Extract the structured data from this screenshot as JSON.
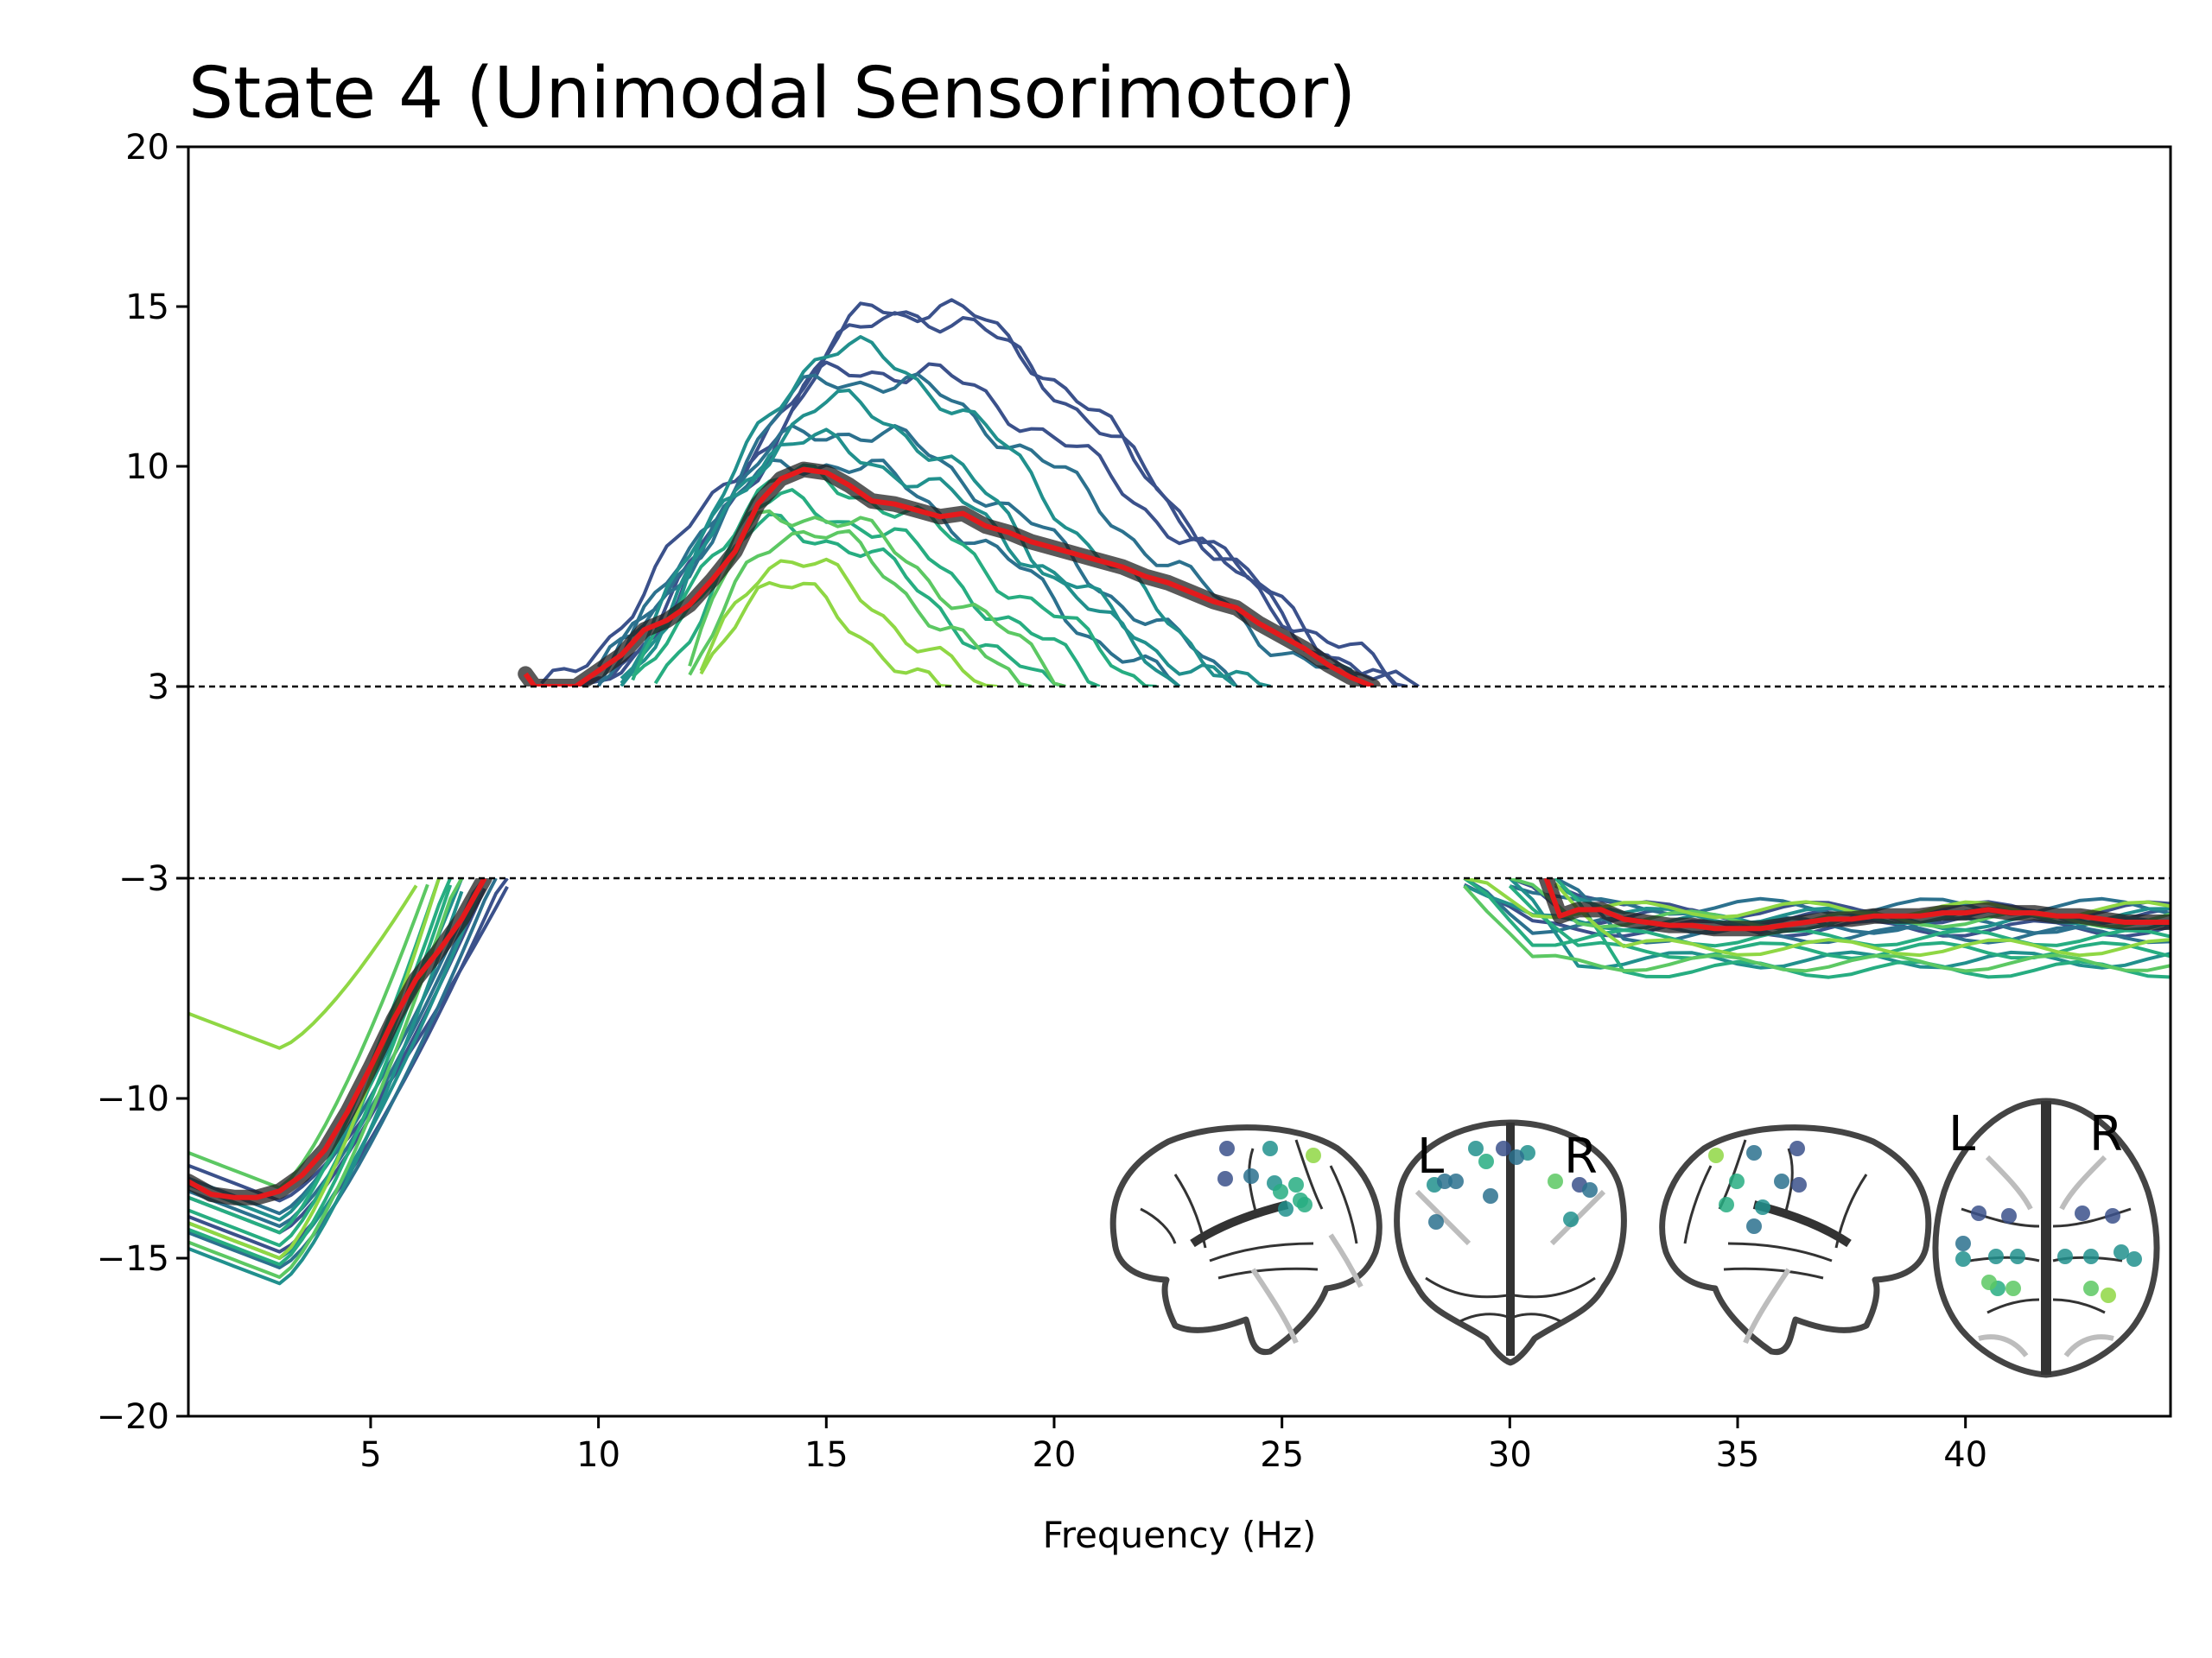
{
  "chart_data": {
    "type": "line",
    "title": "State 4 (Unimodal Sensorimotor)",
    "xlabel": "Frequency (Hz)",
    "ylabel": "",
    "xlim": [
      1,
      44.5
    ],
    "x_ticks": [
      5,
      10,
      15,
      20,
      25,
      30,
      35,
      40
    ],
    "y_ticks": [
      20,
      15,
      10,
      3,
      -3,
      -10,
      -15,
      -20
    ],
    "y_tick_labels": [
      "20",
      "15",
      "10",
      "3",
      "−3",
      "−10",
      "−15",
      "−20"
    ],
    "threshold_lines": [
      3,
      -3
    ],
    "grid": false,
    "legend": "none",
    "colors": {
      "mean_line": "#e41a1c",
      "mean_band": "#222222",
      "threshold": "#000000",
      "viridis": [
        "#3b518b",
        "#2c718e",
        "#21908d",
        "#27ad81",
        "#5cc863",
        "#8fd744"
      ]
    },
    "mean_series": {
      "name": "",
      "low_band": {
        "x": [
          1,
          1.5,
          2,
          2.5,
          3,
          3.5,
          4,
          4.5,
          5,
          5.5,
          6,
          6.5,
          7,
          7.5
        ],
        "y": [
          -12.6,
          -13,
          -13.1,
          -13.1,
          -12.9,
          -12.4,
          -11.6,
          -10.4,
          -9.0,
          -7.5,
          -6.2,
          -5.3,
          -4.3,
          -3
        ]
      },
      "peak": {
        "x": [
          8.4,
          8.6,
          9.5,
          10,
          10.5,
          11,
          11.5,
          12,
          12.5,
          13,
          13.5,
          14,
          14.5,
          15,
          15.5,
          16,
          16.5,
          17,
          17.5,
          18,
          18.5,
          19,
          19.5,
          20,
          20.5,
          21,
          21.5,
          22,
          22.5,
          23,
          23.5,
          24,
          24.5,
          25,
          25.5,
          26,
          26.5,
          27
        ],
        "y": [
          3.4,
          3,
          3,
          3.5,
          4.0,
          4.8,
          5.1,
          5.6,
          6.4,
          7.3,
          8.8,
          9.6,
          9.9,
          9.8,
          9.4,
          8.9,
          8.8,
          8.6,
          8.4,
          8.5,
          8.1,
          7.9,
          7.6,
          7.4,
          7.2,
          7.0,
          6.8,
          6.5,
          6.3,
          6.0,
          5.7,
          5.5,
          5.0,
          4.6,
          4.2,
          3.7,
          3.3,
          3.0
        ]
      },
      "high_band": {
        "x": [
          30.8,
          31.1,
          31.5,
          32,
          32.5,
          33,
          33.5,
          34,
          34.5,
          35,
          35.5,
          36,
          36.5,
          37,
          37.5,
          38,
          38.5,
          39,
          39.5,
          40,
          40.5,
          41,
          41.5,
          42,
          42.5,
          43,
          43.5,
          44,
          44.5
        ],
        "y": [
          -3.0,
          -4.2,
          -4.0,
          -4.0,
          -4.3,
          -4.4,
          -4.5,
          -4.5,
          -4.6,
          -4.6,
          -4.6,
          -4.5,
          -4.4,
          -4.3,
          -4.3,
          -4.2,
          -4.2,
          -4.2,
          -4.1,
          -4.1,
          -4.0,
          -4.1,
          -4.1,
          -4.2,
          -4.2,
          -4.3,
          -4.4,
          -4.4,
          -4.4
        ]
      }
    },
    "region_series": [
      {
        "color_index": 0,
        "amp": 14.3,
        "center": 16.5,
        "width_left": 3.4,
        "width_right": 5.8,
        "low_min": -14.2,
        "low_knee": 6.1,
        "high_level": -4.6
      },
      {
        "color_index": 0,
        "amp": 14.4,
        "center": 16.9,
        "width_left": 3.7,
        "width_right": 5.4,
        "low_min": -14.8,
        "low_knee": 6.4,
        "high_level": -4.2
      },
      {
        "color_index": 0,
        "amp": 12.5,
        "center": 15.9,
        "width_left": 3.8,
        "width_right": 6.6,
        "low_min": -13.2,
        "low_knee": 6.6,
        "high_level": -4.0
      },
      {
        "color_index": 1,
        "amp": 12.2,
        "center": 15.4,
        "width_left": 3.1,
        "width_right": 6.2,
        "low_min": -15.3,
        "low_knee": 6.2,
        "high_level": -4.5
      },
      {
        "color_index": 1,
        "amp": 10.6,
        "center": 15.0,
        "width_left": 3.0,
        "width_right": 5.4,
        "low_min": -14.0,
        "low_knee": 6.0,
        "high_level": -3.9
      },
      {
        "color_index": 1,
        "amp": 9.6,
        "center": 14.6,
        "width_left": 2.9,
        "width_right": 4.8,
        "low_min": -13.6,
        "low_knee": 5.9,
        "high_level": -4.8
      },
      {
        "color_index": 2,
        "amp": 13.0,
        "center": 15.2,
        "width_left": 2.6,
        "width_right": 5.0,
        "low_min": -15.0,
        "low_knee": 6.0,
        "high_level": -4.4
      },
      {
        "color_index": 2,
        "amp": 11.3,
        "center": 15.1,
        "width_left": 2.7,
        "width_right": 4.4,
        "low_min": -15.8,
        "low_knee": 5.6,
        "high_level": -5.6
      },
      {
        "color_index": 2,
        "amp": 10.1,
        "center": 14.3,
        "width_left": 2.4,
        "width_right": 5.6,
        "low_min": -13.8,
        "low_knee": 5.5,
        "high_level": -4.2
      },
      {
        "color_index": 3,
        "amp": 9.0,
        "center": 14.2,
        "width_left": 2.2,
        "width_right": 5.0,
        "low_min": -14.6,
        "low_knee": 5.2,
        "high_level": -4.9
      },
      {
        "color_index": 3,
        "amp": 8.2,
        "center": 14.0,
        "width_left": 2.0,
        "width_right": 4.6,
        "low_min": -14.2,
        "low_knee": 5.0,
        "high_level": -5.3
      },
      {
        "color_index": 3,
        "amp": 7.5,
        "center": 13.9,
        "width_left": 1.8,
        "width_right": 3.9,
        "low_min": -15.2,
        "low_knee": 5.3,
        "high_level": -5.9
      },
      {
        "color_index": 4,
        "amp": 8.0,
        "center": 14.0,
        "width_left": 1.5,
        "width_right": 4.2,
        "low_min": -12.8,
        "low_knee": 4.8,
        "high_level": -5.7
      },
      {
        "color_index": 4,
        "amp": 7.4,
        "center": 14.1,
        "width_left": 1.4,
        "width_right": 3.4,
        "low_min": -15.6,
        "low_knee": 5.4,
        "high_level": -4.3
      },
      {
        "color_index": 5,
        "amp": 6.4,
        "center": 13.8,
        "width_left": 1.2,
        "width_right": 3.2,
        "low_min": -8.4,
        "low_knee": 4.6,
        "high_level": -5.2
      },
      {
        "color_index": 5,
        "amp": 5.6,
        "center": 13.6,
        "width_left": 1.1,
        "width_right": 2.8,
        "low_min": -15.0,
        "low_knee": 5.0,
        "high_level": -4.0
      }
    ],
    "inset_labels": [
      "L",
      "R",
      "L",
      "R"
    ]
  }
}
